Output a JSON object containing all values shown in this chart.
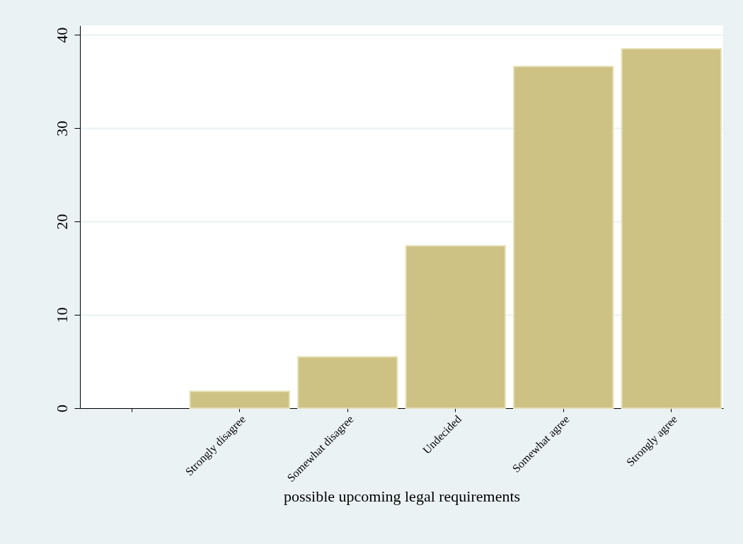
{
  "chart_data": {
    "type": "bar",
    "xlabel": "possible upcoming legal requirements",
    "categories": [
      null,
      "Strongly disagree",
      "Somewhat disagree",
      "Undecided",
      "Somewhat agree",
      "Strongly agree"
    ],
    "values": [
      null,
      1.8,
      5.5,
      17.4,
      36.6,
      38.5
    ],
    "color": "#cdc283",
    "ylim": [
      0,
      41
    ],
    "yticks": [
      0,
      10,
      20,
      30,
      40
    ],
    "grid": "y"
  }
}
